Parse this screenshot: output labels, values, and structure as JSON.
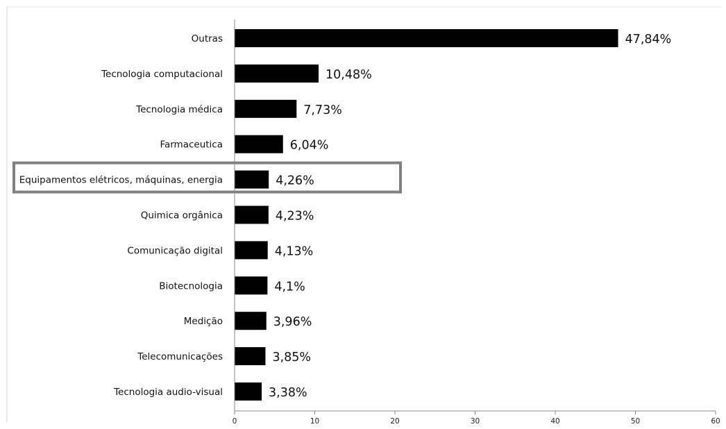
{
  "chart_data": {
    "type": "bar",
    "orientation": "horizontal",
    "title": "",
    "xlabel": "",
    "ylabel": "",
    "xlim": [
      0,
      60
    ],
    "x_ticks": [
      0,
      10,
      20,
      30,
      40,
      50,
      60
    ],
    "grid": false,
    "legend": "none",
    "bar_color": "#000000",
    "categories": [
      "Outras",
      "Tecnologia computacional",
      "Tecnologia médica",
      "Farmaceutica",
      "Equipamentos elétricos, máquinas, energia",
      "Quimica orgânica",
      "Comunicação digital",
      "Biotecnologia",
      "Medição",
      "Telecomunicações",
      "Tecnologia audio-visual"
    ],
    "values": [
      47.84,
      10.48,
      7.73,
      6.04,
      4.26,
      4.23,
      4.13,
      4.1,
      3.96,
      3.85,
      3.38
    ],
    "data_labels": [
      "47,84%",
      "10,48%",
      "7,73%",
      "6,04%",
      "4,26%",
      "4,23%",
      "4,13%",
      "4,1%",
      "3,96%",
      "3,85%",
      "3,38%"
    ],
    "highlighted_category": "Equipamentos elétricos, máquinas, energia",
    "highlight_color": "#808080"
  }
}
